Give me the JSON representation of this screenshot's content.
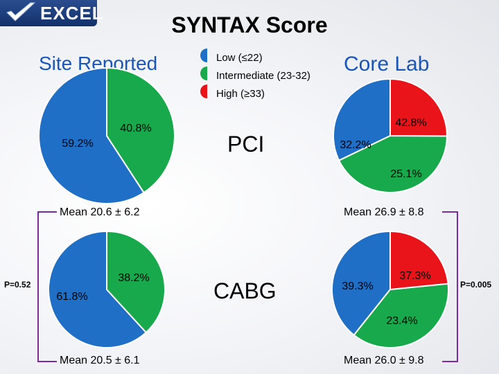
{
  "logo": {
    "text": "EXCEL"
  },
  "title": "SYNTAX Score",
  "columns": {
    "left": "Site Reported",
    "right": "Core Lab"
  },
  "legend": [
    {
      "label": "Low (≤22)",
      "color": "#1f6fc6"
    },
    {
      "label": "Intermediate (23-32)",
      "color": "#17a94b"
    },
    {
      "label": "High (≥33)",
      "color": "#e8141a"
    }
  ],
  "rows": [
    {
      "label": "PCI"
    },
    {
      "label": "CABG"
    }
  ],
  "p_values": {
    "site": "P=0.52",
    "core": "P=0.005"
  },
  "chart_data": [
    {
      "type": "pie",
      "column": "Site Reported",
      "row": "PCI",
      "slices": [
        {
          "category": "Low (≤22)",
          "value": 59.2,
          "label": "59.2%"
        },
        {
          "category": "Intermediate (23-32)",
          "value": 40.8,
          "label": "40.8%"
        }
      ],
      "mean": "Mean 20.6 ± 6.2"
    },
    {
      "type": "pie",
      "column": "Core Lab",
      "row": "PCI",
      "slices": [
        {
          "category": "Low (≤22)",
          "value": 32.2,
          "label": "32.2%"
        },
        {
          "category": "Intermediate (23-32)",
          "value": 42.8,
          "label": "42.8%"
        },
        {
          "category": "High (≥33)",
          "value": 25.1,
          "label": "25.1%"
        }
      ],
      "mean": "Mean 26.9 ± 8.8"
    },
    {
      "type": "pie",
      "column": "Site Reported",
      "row": "CABG",
      "slices": [
        {
          "category": "Low (≤22)",
          "value": 61.8,
          "label": "61.8%"
        },
        {
          "category": "Intermediate (23-32)",
          "value": 38.2,
          "label": "38.2%"
        }
      ],
      "mean": "Mean 20.5 ± 6.1"
    },
    {
      "type": "pie",
      "column": "Core Lab",
      "row": "CABG",
      "slices": [
        {
          "category": "Low (≤22)",
          "value": 39.3,
          "label": "39.3%"
        },
        {
          "category": "Intermediate (23-32)",
          "value": 37.3,
          "label": "37.3%"
        },
        {
          "category": "High (≥33)",
          "value": 23.4,
          "label": "23.4%"
        }
      ],
      "mean": "Mean 26.0 ± 9.8"
    }
  ]
}
